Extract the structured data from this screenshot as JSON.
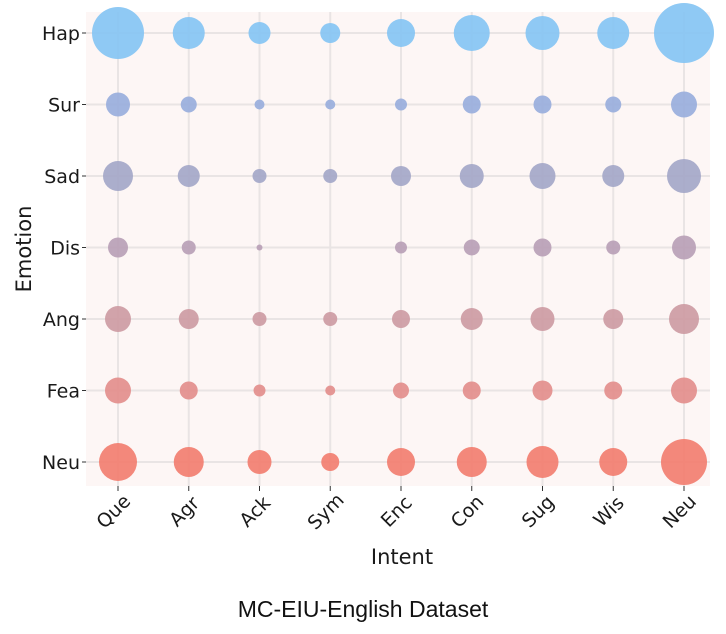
{
  "chart_data": {
    "type": "scatter",
    "x_categories": [
      "Que",
      "Agr",
      "Ack",
      "Sym",
      "Enc",
      "Con",
      "Sug",
      "Wis",
      "Neu"
    ],
    "y_categories": [
      "Hap",
      "Sur",
      "Sad",
      "Dis",
      "Ang",
      "Fea",
      "Neu"
    ],
    "xlabel": "Intent",
    "ylabel": "Emotion",
    "grid": true,
    "size_matrix": [
      [
        26,
        16,
        11,
        10,
        14,
        18,
        17,
        16,
        30
      ],
      [
        12,
        8,
        5,
        5,
        6,
        9,
        9,
        8,
        13
      ],
      [
        15,
        11,
        7,
        7,
        10,
        12,
        13,
        11,
        17
      ],
      [
        10,
        7,
        3,
        0,
        6,
        8,
        9,
        7,
        12
      ],
      [
        13,
        10,
        7,
        7,
        9,
        11,
        12,
        10,
        15
      ],
      [
        13,
        9,
        6,
        5,
        8,
        9,
        10,
        9,
        13
      ],
      [
        19,
        15,
        12,
        9,
        14,
        15,
        16,
        14,
        23
      ]
    ],
    "row_colors": [
      "#86c4f3",
      "#99aedc",
      "#a4a7c8",
      "#b8a0b6",
      "#cd9ba3",
      "#e38e8c",
      "#f27e70"
    ]
  },
  "caption": "MC-EIU-English Dataset"
}
